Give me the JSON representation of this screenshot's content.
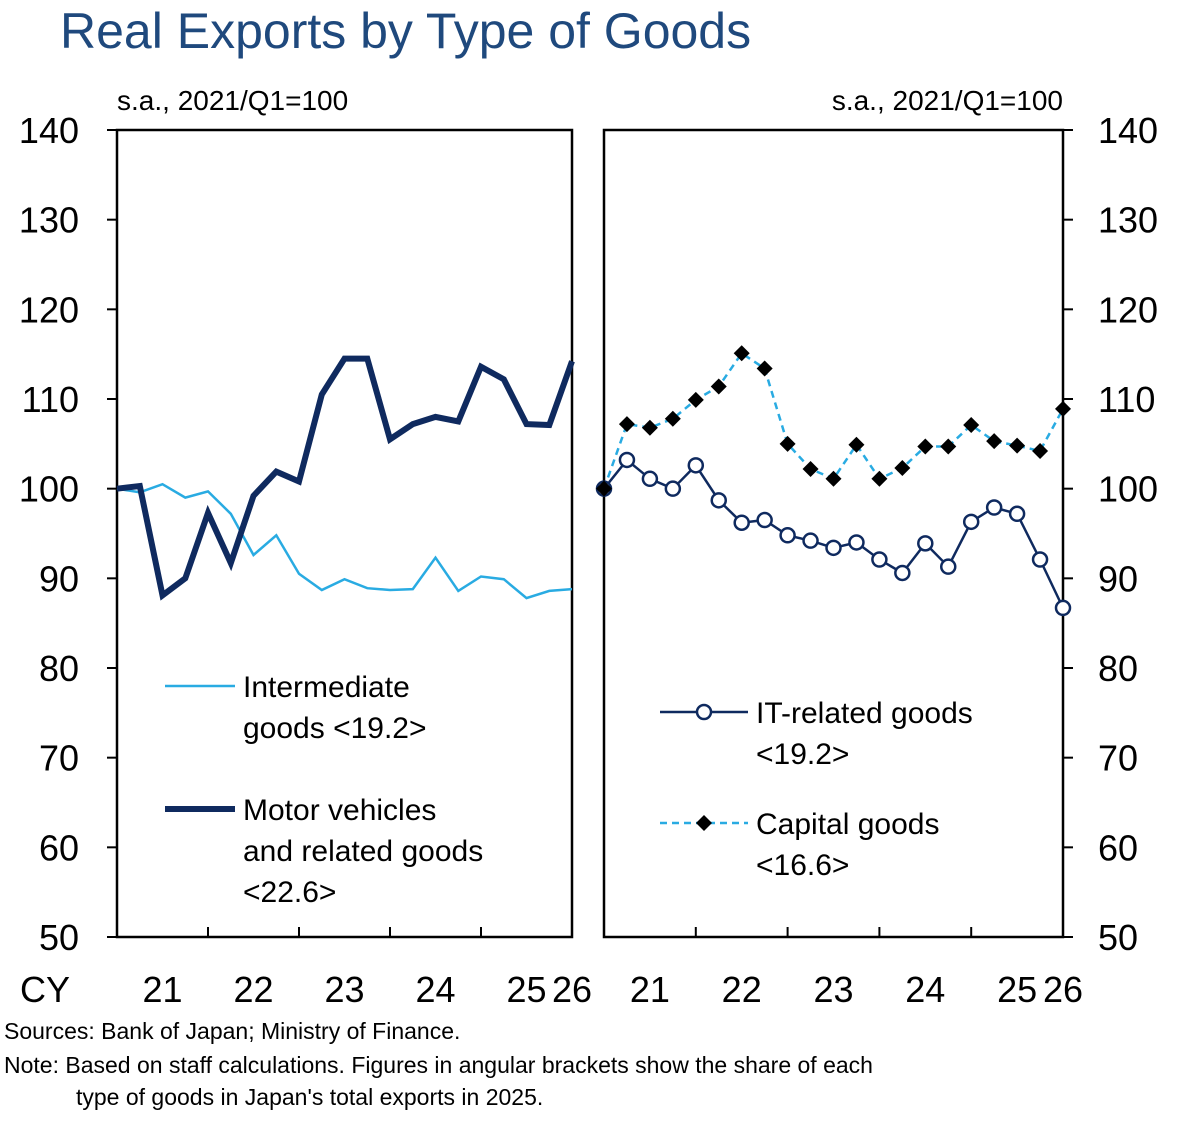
{
  "title": "Real Exports by Type of Goods",
  "sources": "Sources: Bank of Japan; Ministry of Finance.",
  "note_line1": "Note: Based on staff calculations. Figures in angular brackets show the share of each",
  "note_line2": "type of goods in Japan's total exports in 2025.",
  "colors": {
    "light_blue": "#29abe2",
    "navy": "#0f2a5f",
    "marker_black": "#000000",
    "title_blue": "#1f497d"
  },
  "chart_data": [
    {
      "type": "line",
      "unit_label": "s.a., 2021/Q1=100",
      "ylim": [
        50,
        140
      ],
      "yticks": [
        "140",
        "130",
        "120",
        "110",
        "100",
        "90",
        "80",
        "70",
        "60",
        "50"
      ],
      "xlim": [
        2021.0,
        2026.0
      ],
      "x_prefix": "CY",
      "xticks": [
        "21",
        "22",
        "23",
        "24",
        "25",
        "26"
      ],
      "grid": false,
      "legend_position": "lower-left",
      "x": [
        2021.0,
        2021.25,
        2021.5,
        2021.75,
        2022.0,
        2022.25,
        2022.5,
        2022.75,
        2023.0,
        2023.25,
        2023.5,
        2023.75,
        2024.0,
        2024.25,
        2024.5,
        2024.75,
        2025.0,
        2025.25,
        2025.5,
        2025.75,
        2026.0
      ],
      "series": [
        {
          "name": "Intermediate goods <19.2>",
          "legend_lines": [
            "Intermediate",
            "goods <19.2>"
          ],
          "style": "thin-light-blue",
          "values": [
            100,
            99.6,
            100.5,
            99,
            99.7,
            97.2,
            92.6,
            94.8,
            90.5,
            88.7,
            89.9,
            88.9,
            88.7,
            88.8,
            92.3,
            88.6,
            90.2,
            89.9,
            87.8,
            88.6,
            88.8
          ]
        },
        {
          "name": "Motor vehicles and related goods <22.6>",
          "legend_lines": [
            "Motor vehicles",
            "and related goods",
            "<22.6>"
          ],
          "style": "thick-navy",
          "values": [
            100,
            100.3,
            88.1,
            90,
            97.3,
            91.7,
            99.2,
            101.9,
            100.8,
            110.5,
            114.5,
            114.5,
            105.5,
            107.2,
            108,
            107.5,
            113.6,
            112.2,
            107.2,
            107.1,
            114.2
          ]
        }
      ]
    },
    {
      "type": "line",
      "unit_label": "s.a., 2021/Q1=100",
      "ylim": [
        50,
        140
      ],
      "yticks": [
        "140",
        "130",
        "120",
        "110",
        "100",
        "90",
        "80",
        "70",
        "60",
        "50"
      ],
      "xlim": [
        2021.0,
        2026.0
      ],
      "xticks": [
        "21",
        "22",
        "23",
        "24",
        "25",
        "26"
      ],
      "grid": false,
      "legend_position": "lower-right",
      "x": [
        2021.0,
        2021.25,
        2021.5,
        2021.75,
        2022.0,
        2022.25,
        2022.5,
        2022.75,
        2023.0,
        2023.25,
        2023.5,
        2023.75,
        2024.0,
        2024.25,
        2024.5,
        2024.75,
        2025.0,
        2025.25,
        2025.5,
        2025.75,
        2026.0
      ],
      "series": [
        {
          "name": "IT-related goods <19.2>",
          "legend_lines": [
            "IT-related goods",
            "<19.2>"
          ],
          "style": "navy-open-circles",
          "values": [
            100,
            103.2,
            101.1,
            100,
            102.6,
            98.7,
            96.2,
            96.5,
            94.8,
            94.2,
            93.4,
            94,
            92.1,
            90.6,
            93.9,
            91.3,
            96.3,
            97.9,
            97.2,
            92.1,
            86.7
          ]
        },
        {
          "name": "Capital goods <16.6>",
          "legend_lines": [
            "Capital goods",
            "<16.6>"
          ],
          "style": "dashed-light-blue-diamonds",
          "values": [
            100,
            107.2,
            106.8,
            107.8,
            109.9,
            111.4,
            115.1,
            113.4,
            105,
            102.2,
            101.1,
            104.9,
            101.1,
            102.3,
            104.7,
            104.7,
            107.1,
            105.3,
            104.8,
            104.2,
            108.9
          ]
        }
      ]
    }
  ]
}
